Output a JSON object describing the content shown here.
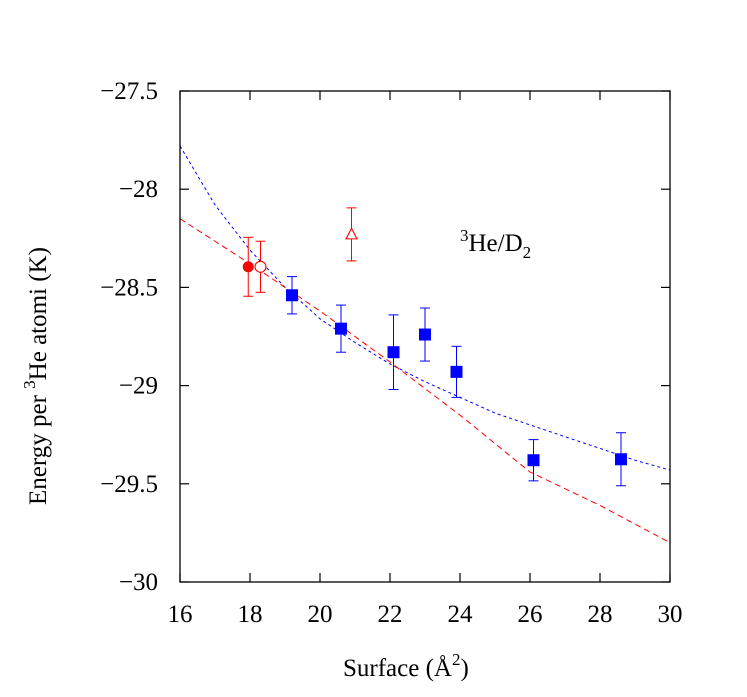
{
  "chart_data": {
    "type": "scatter",
    "title": "",
    "annotation": {
      "sup": "3",
      "text1": "He/D",
      "sub": "2"
    },
    "xlabel": {
      "text": "Surface (Å",
      "sup": "2",
      "close": ")"
    },
    "ylabel": {
      "pre": "Energy per ",
      "sup": "3",
      "post": "He atomi (K)"
    },
    "xlim": [
      16,
      30
    ],
    "ylim": [
      -30,
      -27.5
    ],
    "xticks": [
      {
        "v": 16,
        "label": "16"
      },
      {
        "v": 18,
        "label": "18"
      },
      {
        "v": 20,
        "label": "20"
      },
      {
        "v": 22,
        "label": "22"
      },
      {
        "v": 24,
        "label": "24"
      },
      {
        "v": 26,
        "label": "26"
      },
      {
        "v": 28,
        "label": "28"
      },
      {
        "v": 30,
        "label": "30"
      }
    ],
    "yticks": [
      {
        "v": -27.5,
        "label": "−27.5"
      },
      {
        "v": -28,
        "label": "−28"
      },
      {
        "v": -28.5,
        "label": "−28.5"
      },
      {
        "v": -29,
        "label": "−29"
      },
      {
        "v": -29.5,
        "label": "−29.5"
      },
      {
        "v": -30,
        "label": "−30"
      }
    ],
    "grid": false,
    "colors": {
      "blue": "#0000ff",
      "red": "#ff0000"
    },
    "series": [
      {
        "marker": "square",
        "color": "#0000ff",
        "points": [
          {
            "x": 19.2,
            "y": -28.54,
            "err": 0.095
          },
          {
            "x": 20.6,
            "y": -28.71,
            "err": 0.12
          },
          {
            "x": 22.1,
            "y": -28.83,
            "err": 0.19
          },
          {
            "x": 23.0,
            "y": -28.74,
            "err": 0.135
          },
          {
            "x": 23.9,
            "y": -28.93,
            "err": 0.13
          },
          {
            "x": 26.1,
            "y": -29.38,
            "err": 0.105
          },
          {
            "x": 28.6,
            "y": -29.375,
            "err": 0.135
          }
        ]
      },
      {
        "marker": "filled-circle",
        "color": "#ff0000",
        "points": [
          {
            "x": 17.95,
            "y": -28.395,
            "err": 0.15
          }
        ]
      },
      {
        "marker": "open-circle",
        "color": "#ff0000",
        "points": [
          {
            "x": 18.3,
            "y": -28.395,
            "err": 0.13
          }
        ]
      },
      {
        "marker": "open-triangle",
        "color": "#ff0000",
        "points": [
          {
            "x": 20.9,
            "y": -28.23,
            "err": 0.135
          }
        ]
      }
    ],
    "fit_lines": [
      {
        "style": "dashed",
        "color": "#0000ff",
        "x": [
          16,
          17,
          18,
          19,
          20,
          21,
          22,
          23,
          24,
          25,
          26,
          27,
          28,
          29,
          30
        ],
        "y": [
          -27.78,
          -28.08,
          -28.31,
          -28.5,
          -28.66,
          -28.78,
          -28.89,
          -28.98,
          -29.06,
          -29.14,
          -29.2,
          -29.26,
          -29.32,
          -29.38,
          -29.43
        ]
      },
      {
        "style": "dashed",
        "color": "#ff0000",
        "x": [
          16,
          18,
          20,
          22,
          24,
          26,
          28,
          30
        ],
        "y": [
          -28.15,
          -28.38,
          -28.62,
          -28.88,
          -29.15,
          -29.44,
          -29.61,
          -29.8
        ]
      }
    ]
  }
}
